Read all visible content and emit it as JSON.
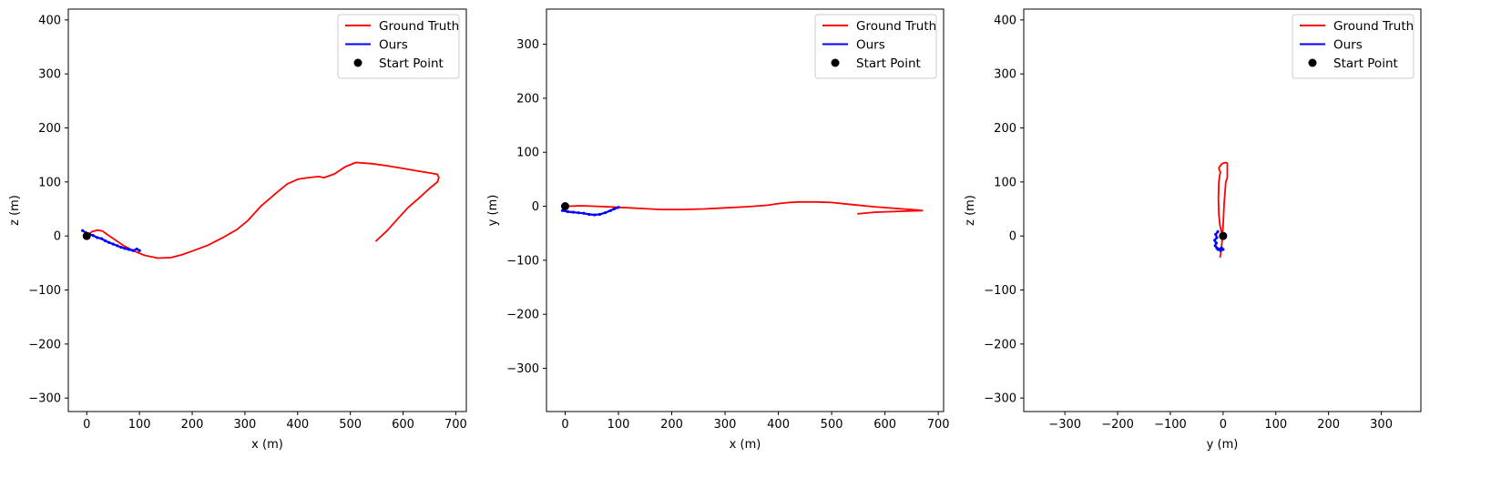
{
  "colors": {
    "ground_truth": "#ff0000",
    "ours": "#0000ff",
    "start_point": "#000000"
  },
  "chart_data": [
    {
      "type": "line",
      "title": "",
      "xlabel": "x (m)",
      "ylabel": "z (m)",
      "xlim": [
        -35,
        720
      ],
      "ylim": [
        -325,
        420
      ],
      "xticks": [
        0,
        100,
        200,
        300,
        400,
        500,
        600,
        700
      ],
      "yticks": [
        -300,
        -200,
        -100,
        0,
        100,
        200,
        300,
        400
      ],
      "grid": false,
      "legend": {
        "position": "top-right",
        "entries": [
          "Ground Truth",
          "Ours",
          "Start Point"
        ]
      },
      "series": [
        {
          "name": "Ground Truth",
          "kind": "line",
          "color": "#ff0000",
          "x": [
            0,
            10,
            20,
            30,
            40,
            55,
            70,
            90,
            110,
            135,
            160,
            180,
            200,
            230,
            260,
            285,
            305,
            330,
            360,
            380,
            400,
            420,
            440,
            450,
            470,
            490,
            510,
            540,
            570,
            600,
            630,
            655,
            665,
            668,
            665,
            650,
            630,
            610,
            590,
            570,
            548
          ],
          "y": [
            0,
            8,
            11,
            9,
            2,
            -8,
            -18,
            -28,
            -36,
            -41,
            -40,
            -35,
            -28,
            -17,
            -2,
            12,
            28,
            55,
            80,
            96,
            105,
            108,
            110,
            108,
            115,
            128,
            136,
            134,
            130,
            125,
            120,
            116,
            114,
            108,
            100,
            88,
            70,
            53,
            32,
            10,
            -10
          ]
        },
        {
          "name": "Ours",
          "kind": "line",
          "color": "#0000ff",
          "x": [
            -8,
            -2,
            5,
            12,
            20,
            28,
            35,
            42,
            50,
            58,
            65,
            72,
            80,
            88,
            95,
            100
          ],
          "y": [
            10,
            6,
            3,
            1,
            -3,
            -5,
            -9,
            -12,
            -15,
            -18,
            -21,
            -23,
            -25,
            -27,
            -24,
            -27
          ]
        },
        {
          "name": "Start Point",
          "kind": "scatter",
          "color": "#000000",
          "x": [
            0
          ],
          "y": [
            0
          ]
        }
      ]
    },
    {
      "type": "line",
      "title": "",
      "xlabel": "x (m)",
      "ylabel": "y (m)",
      "xlim": [
        -35,
        710
      ],
      "ylim": [
        -380,
        365
      ],
      "xticks": [
        0,
        100,
        200,
        300,
        400,
        500,
        600,
        700
      ],
      "yticks": [
        -300,
        -200,
        -100,
        0,
        100,
        200,
        300
      ],
      "grid": false,
      "legend": {
        "position": "top-right",
        "entries": [
          "Ground Truth",
          "Ours",
          "Start Point"
        ]
      },
      "series": [
        {
          "name": "Ground Truth",
          "kind": "line",
          "color": "#ff0000",
          "x": [
            0,
            30,
            60,
            100,
            140,
            180,
            220,
            260,
            300,
            340,
            380,
            400,
            420,
            440,
            470,
            500,
            540,
            580,
            620,
            660,
            670,
            640,
            610,
            580,
            548
          ],
          "y": [
            0,
            1,
            0,
            -2,
            -4,
            -6,
            -6,
            -5,
            -3,
            -1,
            2,
            5,
            7,
            8,
            8,
            7,
            3,
            -1,
            -4,
            -7,
            -8,
            -9,
            -10,
            -11,
            -14
          ]
        },
        {
          "name": "Ours",
          "kind": "line",
          "color": "#0000ff",
          "x": [
            -5,
            5,
            15,
            25,
            35,
            45,
            55,
            65,
            75,
            85,
            92,
            100
          ],
          "y": [
            -8,
            -10,
            -11,
            -12,
            -13,
            -15,
            -16,
            -15,
            -12,
            -8,
            -5,
            -2
          ]
        },
        {
          "name": "Start Point",
          "kind": "scatter",
          "color": "#000000",
          "x": [
            0
          ],
          "y": [
            0
          ]
        }
      ]
    },
    {
      "type": "line",
      "title": "",
      "xlabel": "y (m)",
      "ylabel": "z (m)",
      "xlim": [
        -378,
        375
      ],
      "ylim": [
        -325,
        420
      ],
      "xticks": [
        -300,
        -200,
        -100,
        0,
        100,
        200,
        300
      ],
      "yticks": [
        -300,
        -200,
        -100,
        0,
        100,
        200,
        300,
        400
      ],
      "grid": false,
      "legend": {
        "position": "top-right",
        "entries": [
          "Ground Truth",
          "Ours",
          "Start Point"
        ]
      },
      "series": [
        {
          "name": "Ground Truth",
          "kind": "line",
          "color": "#ff0000",
          "x": [
            0,
            -2,
            -4,
            -6,
            -8,
            -9,
            -8,
            -6,
            -5,
            -6,
            -8,
            -7,
            -5,
            -3,
            1,
            5,
            8,
            8,
            5,
            2,
            0,
            -2,
            -4,
            -6
          ],
          "y": [
            0,
            5,
            10,
            20,
            40,
            70,
            100,
            115,
            118,
            120,
            125,
            128,
            130,
            133,
            135,
            136,
            135,
            108,
            100,
            60,
            20,
            -10,
            -30,
            -40
          ]
        },
        {
          "name": "Ours",
          "kind": "line",
          "color": "#0000ff",
          "x": [
            -10,
            -14,
            -12,
            -16,
            -13,
            -15,
            -12,
            -10,
            -8,
            -5,
            -3,
            0
          ],
          "y": [
            8,
            3,
            -3,
            -8,
            -13,
            -18,
            -22,
            -25,
            -24,
            -27,
            -22,
            -25
          ]
        },
        {
          "name": "Start Point",
          "kind": "scatter",
          "color": "#000000",
          "x": [
            0
          ],
          "y": [
            0
          ]
        }
      ]
    }
  ]
}
